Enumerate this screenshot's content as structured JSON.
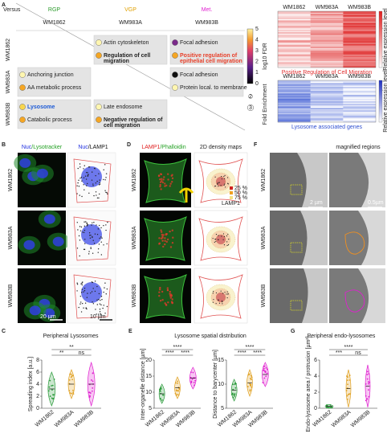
{
  "panels": {
    "A": {
      "letter": "A",
      "corner": "Versus",
      "columns": [
        {
          "group": "RGP",
          "line": "WM1862"
        },
        {
          "group": "VGP",
          "line": "WM983A"
        },
        {
          "group": "Met.",
          "line": "WM983B"
        }
      ],
      "rows": [
        "WM1862",
        "WM983A",
        "WM983B"
      ],
      "grid": [
        [
          null,
          [
            {
              "text": "Actin cytoskeleton",
              "color": "#fff6b0"
            },
            {
              "text": "Regulation of cell migration",
              "color": "#f5a623",
              "bold": true
            }
          ],
          [
            {
              "text": "Focal adhesion",
              "color": "#7b2a8a"
            },
            {
              "text": "Positive regulation of epithelial cell migration",
              "color": "#f5a623",
              "bold": true,
              "text_color": "#e8402a"
            }
          ]
        ],
        [
          [
            {
              "text": "Anchoring junction",
              "color": "#fff6b0"
            },
            {
              "text": "AA metabolic process",
              "color": "#f5a623"
            }
          ],
          null,
          [
            {
              "text": "Focal adhesion",
              "color": "#111111"
            },
            {
              "text": "Protein local. to membrane",
              "color": "#fff6b0"
            }
          ]
        ],
        [
          [
            {
              "text": "Lysosome",
              "color": "#f8d64e",
              "bold": true,
              "text_color": "#1e5bd6"
            },
            {
              "text": "Catabolic process",
              "color": "#f5a623"
            }
          ],
          [
            {
              "text": "Late endosome",
              "color": "#fff6b0"
            },
            {
              "text": "Negative regulation of cell migration",
              "color": "#f5a623",
              "bold": true
            }
          ],
          null
        ]
      ],
      "colorbar": {
        "label": "log10 FDR",
        "ticks": [
          "0",
          "1",
          "2",
          "3",
          "4",
          "5"
        ]
      },
      "fold": {
        "label": "Fold Enrichment",
        "ticks": [
          "2",
          "3"
        ]
      },
      "heatmap_red": {
        "columns": [
          "WM1862",
          "WM983A",
          "WM983B"
        ],
        "title": "Positive Regulation of Cell Migration",
        "scale_label": "Relative expression level",
        "color": "#e03030"
      },
      "heatmap_blue": {
        "columns": [
          "WM1862",
          "WM983A",
          "WM983B"
        ],
        "title": "Lysosome associated genes",
        "scale_label": "Relative expression level",
        "color": "#2f4fd0"
      }
    },
    "B": {
      "letter": "B",
      "head1": [
        "Nuc",
        "/Lysotracker"
      ],
      "head2": [
        "Nuc",
        "/LAMP1"
      ],
      "rows": [
        "WM1862",
        "WM983A",
        "WM983B"
      ],
      "scale1": "20 µm",
      "scale2": "10 µm"
    },
    "D": {
      "letter": "D",
      "head1": [
        "LAMP1",
        "/Phalloidin"
      ],
      "head2": "2D density maps",
      "rows": [
        "WM1862",
        "WM983A",
        "WM983B"
      ],
      "legend": [
        "25 %",
        "50 %",
        "75 %"
      ],
      "marker": "LAMP1"
    },
    "F": {
      "letter": "F",
      "head2": "magnified regions",
      "rows": [
        "WM1862",
        "WM983A",
        "WM983B"
      ],
      "scale1": "2 µm",
      "scale2": "0.5µm"
    },
    "C": {
      "letter": "C",
      "title": "Peripheral Lysosomes",
      "plot": {
        "ylabel": "Spreading index [a.u.]",
        "yticks": [
          "0",
          "2",
          "4",
          "6",
          "8"
        ],
        "groups": [
          "WM1862",
          "WM983A",
          "WM983B"
        ],
        "sig": [
          "**",
          "ns",
          "**"
        ]
      }
    },
    "E": {
      "letter": "E",
      "title": "Lysosome spatial distribution",
      "plot1": {
        "ylabel": "Inter-organelle distance [µm]",
        "yticks": [
          "5",
          "10",
          "15",
          "20"
        ],
        "groups": [
          "WM1862",
          "WM983A",
          "WM983B"
        ],
        "sig": [
          "****",
          "****",
          "****"
        ]
      },
      "plot2": {
        "ylabel": "Distance to barycenter [µm]",
        "yticks": [
          "5",
          "10",
          "15"
        ],
        "groups": [
          "WM1862",
          "WM983A",
          "WM983B"
        ],
        "sig": [
          "****",
          "****",
          "****"
        ]
      }
    },
    "G": {
      "letter": "G",
      "title": "Peripheral endo-lysosomes",
      "plot": {
        "ylabel": "Endo-lysosome area / protrusion [µm²]",
        "yticks": [
          "0",
          "2",
          "4",
          "6"
        ],
        "groups": [
          "WM1862",
          "WM983A",
          "WM983B"
        ],
        "sig": [
          "***",
          "ns",
          "****"
        ]
      }
    }
  }
}
